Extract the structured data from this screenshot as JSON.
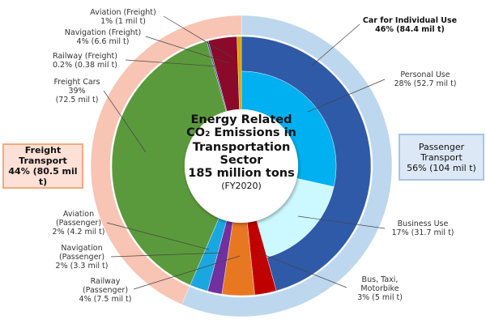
{
  "chart_data": {
    "type": "pie",
    "subtype": "nested-donut",
    "title_lines": [
      "Energy Related",
      "CO",
      "2",
      " Emissions in",
      "Transportation",
      "Sector",
      "185 million tons",
      "(FY2020)"
    ],
    "total": "185 million tons",
    "unit": "mil t",
    "groups": [
      {
        "name": "Passenger Transport",
        "label_line1": "Passenger",
        "label_line2": "Transport",
        "value_text": "56% (104 mil t)",
        "value": 104,
        "color": "#bdd7ee"
      },
      {
        "name": "Freight Transport",
        "label_line1": "Freight",
        "label_line2": "Transport",
        "value_text": "44% (80.5 mil t)",
        "value": 80.5,
        "color": "#f8c4b4"
      }
    ],
    "segments": [
      {
        "name": "Car for Individual Use",
        "lines": [
          "Car for Individual Use",
          "46% (84.4 mil t)"
        ],
        "value": 84.4,
        "group": "Passenger Transport",
        "color": "#2f5aa8",
        "sub": [
          {
            "name": "Personal Use",
            "lines": [
              "Personal Use",
              "28% (52.7 mil t)"
            ],
            "value": 52.7,
            "color": "#00b0f0"
          },
          {
            "name": "Business Use",
            "lines": [
              "Business Use",
              "17% (31.7 mil t)"
            ],
            "value": 31.7,
            "color": "#ccf9ff"
          }
        ]
      },
      {
        "name": "Bus, Taxi, Motorbike",
        "lines": [
          "Bus, Taxi,",
          "Motorbike",
          "3% (5 mil t)"
        ],
        "value": 5,
        "group": "Passenger Transport",
        "color": "#c00000"
      },
      {
        "name": "Railway (Passenger)",
        "lines": [
          "Railway",
          "(Passenger)",
          "4% (7.5 mil t)"
        ],
        "value": 7.5,
        "group": "Passenger Transport",
        "color": "#e87722"
      },
      {
        "name": "Navigation (Passenger)",
        "lines": [
          "Navigation",
          "(Passenger)",
          "2% (3.3 mil t)"
        ],
        "value": 3.3,
        "group": "Passenger Transport",
        "color": "#7030a0"
      },
      {
        "name": "Aviation (Passenger)",
        "lines": [
          "Aviation",
          "(Passenger)",
          "2% (4.2 mil t)"
        ],
        "value": 4.2,
        "group": "Passenger Transport",
        "color": "#1aa7e0"
      },
      {
        "name": "Freight Cars",
        "lines": [
          "Freight Cars",
          "39%",
          "(72.5 mil t)"
        ],
        "value": 72.5,
        "group": "Freight Transport",
        "color": "#5b9a3c"
      },
      {
        "name": "Railway (Freight)",
        "lines": [
          "Railway (Freight)",
          "0.2% (0.38 mil t)"
        ],
        "value": 0.38,
        "group": "Freight Transport",
        "color": "#2e5597"
      },
      {
        "name": "Navigation (Freight)",
        "lines": [
          "Navigation (Freight)",
          "4% (6.6 mil t)"
        ],
        "value": 6.6,
        "group": "Freight Transport",
        "color": "#8b0a2a"
      },
      {
        "name": "Aviation (Freight)",
        "lines": [
          "Aviation (Freight)",
          "1% (1 mil t)"
        ],
        "value": 1,
        "group": "Freight Transport",
        "color": "#d9a400"
      }
    ]
  }
}
